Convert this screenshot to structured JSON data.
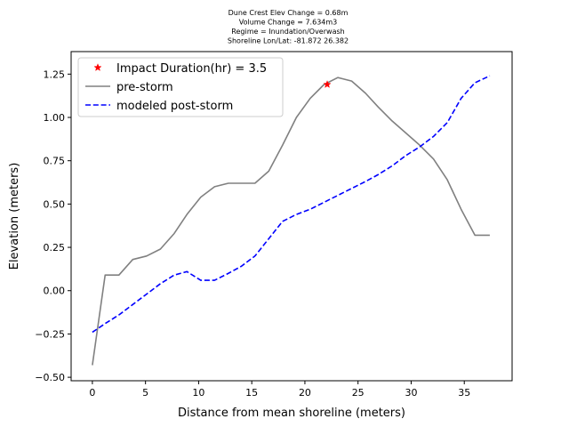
{
  "chart_data": {
    "type": "line",
    "title_lines": [
      "Dune Crest Elev Change = 0.68m",
      "Volume Change = 7.634m3",
      "Regime = Inundation/Overwash",
      "Shoreline Lon/Lat: -81.872 26.382"
    ],
    "xlabel": "Distance from mean shoreline (meters)",
    "ylabel": "Elevation (meters)",
    "xlim": [
      -2,
      39.5
    ],
    "ylim": [
      -0.52,
      1.38
    ],
    "xticks": [
      0,
      5,
      10,
      15,
      20,
      25,
      30,
      35
    ],
    "yticks": [
      -0.5,
      -0.25,
      0.0,
      0.25,
      0.5,
      0.75,
      1.0,
      1.25
    ],
    "ytick_labels": [
      "−0.50",
      "−0.25",
      "0.00",
      "0.25",
      "0.50",
      "0.75",
      "1.00",
      "1.25"
    ],
    "grid": false,
    "legend_position": "top-left",
    "series": [
      {
        "name": "Impact Duration(hr) = 3.5",
        "kind": "marker",
        "color": "#ff0000",
        "x": [
          22.1
        ],
        "y": [
          1.19
        ]
      },
      {
        "name": "pre-storm",
        "kind": "solid",
        "color": "#808080",
        "x": [
          0,
          1.2,
          2.5,
          3.8,
          5.1,
          6.4,
          7.7,
          8.9,
          10.2,
          11.5,
          12.8,
          14.0,
          15.3,
          16.6,
          17.9,
          19.2,
          20.5,
          21.8,
          23.1,
          24.4,
          25.7,
          26.9,
          28.2,
          29.5,
          30.8,
          32.1,
          33.4,
          34.7,
          36.0,
          37.4
        ],
        "y": [
          -0.43,
          0.09,
          0.09,
          0.18,
          0.2,
          0.24,
          0.33,
          0.44,
          0.54,
          0.6,
          0.62,
          0.62,
          0.62,
          0.69,
          0.84,
          1.0,
          1.11,
          1.19,
          1.23,
          1.21,
          1.14,
          1.06,
          0.98,
          0.91,
          0.84,
          0.76,
          0.64,
          0.47,
          0.32,
          0.32
        ]
      },
      {
        "name": "modeled post-storm",
        "kind": "dashed",
        "color": "#0000ff",
        "x": [
          0,
          1.2,
          2.5,
          3.8,
          5.1,
          6.4,
          7.7,
          8.9,
          10.2,
          11.5,
          12.8,
          14.0,
          15.3,
          16.6,
          17.9,
          19.2,
          20.5,
          21.8,
          23.1,
          24.4,
          25.7,
          26.9,
          28.2,
          29.5,
          30.8,
          32.1,
          33.4,
          34.7,
          36.0,
          37.4
        ],
        "y": [
          -0.24,
          -0.19,
          -0.14,
          -0.08,
          -0.02,
          0.04,
          0.09,
          0.11,
          0.06,
          0.06,
          0.1,
          0.14,
          0.2,
          0.3,
          0.4,
          0.44,
          0.47,
          0.51,
          0.55,
          0.59,
          0.63,
          0.67,
          0.72,
          0.78,
          0.83,
          0.89,
          0.97,
          1.11,
          1.2,
          1.24
        ]
      }
    ]
  }
}
